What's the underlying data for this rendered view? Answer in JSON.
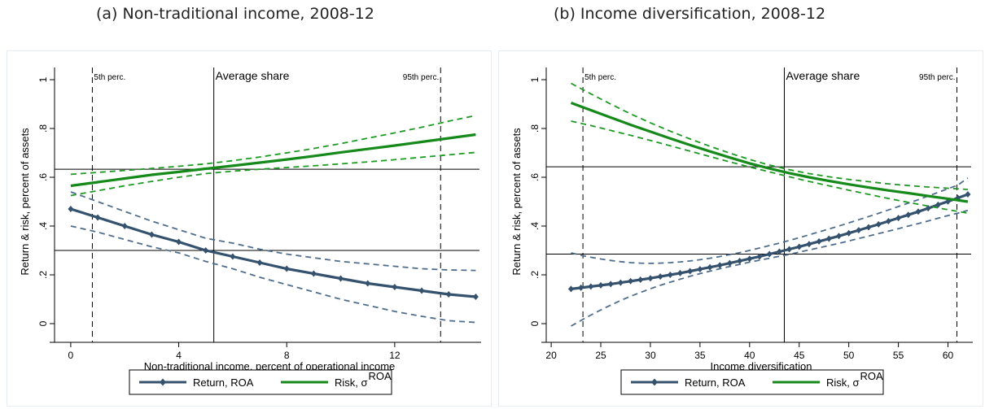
{
  "chart_data": [
    {
      "type": "line",
      "title": "(a) Non-traditional income, 2008-12",
      "xlabel": "Non-traditional income, percent of operational income",
      "ylabel": "Return & risk, percent of assets",
      "xlim": [
        -0.6,
        15.2
      ],
      "ylim": [
        -0.05,
        1.05
      ],
      "xticks": [
        0,
        4,
        8,
        12
      ],
      "yticks": [
        0,
        0.2,
        0.4,
        0.6,
        0.8,
        1
      ],
      "ytick_labels": [
        "0",
        ".2",
        ".4",
        ".6",
        ".8",
        "1"
      ],
      "grid": false,
      "legend_position": "bottom",
      "reference_lines": {
        "vertical": [
          {
            "x": 0.8,
            "style": "dashed",
            "label": "5th perc."
          },
          {
            "x": 5.3,
            "style": "solid",
            "label": "Average share"
          },
          {
            "x": 13.7,
            "style": "dashed",
            "label": "95th perc."
          }
        ],
        "horizontal": [
          {
            "y": 0.633,
            "style": "solid"
          },
          {
            "y": 0.3,
            "style": "solid"
          }
        ]
      },
      "series": [
        {
          "name": "Return, ROA",
          "color": "#34516d",
          "marker": "diamond",
          "x": [
            0,
            1,
            2,
            3,
            4,
            5,
            6,
            7,
            8,
            9,
            10,
            11,
            12,
            13,
            14,
            15
          ],
          "values": [
            0.47,
            0.435,
            0.4,
            0.365,
            0.335,
            0.3,
            0.275,
            0.25,
            0.225,
            0.205,
            0.185,
            0.165,
            0.15,
            0.135,
            0.12,
            0.11
          ],
          "ci_lower": [
            0.4,
            0.375,
            0.345,
            0.315,
            0.29,
            0.255,
            0.225,
            0.19,
            0.16,
            0.13,
            0.1,
            0.075,
            0.05,
            0.03,
            0.012,
            0.005
          ],
          "ci_upper": [
            0.54,
            0.5,
            0.46,
            0.42,
            0.385,
            0.35,
            0.33,
            0.305,
            0.285,
            0.27,
            0.255,
            0.245,
            0.235,
            0.225,
            0.22,
            0.218
          ]
        },
        {
          "name": "Risk, σROA",
          "color": "#15891a",
          "marker": "none",
          "x": [
            0,
            1,
            2,
            3,
            4,
            5,
            6,
            7,
            8,
            9,
            10,
            11,
            12,
            13,
            14,
            15
          ],
          "values": [
            0.565,
            0.58,
            0.595,
            0.61,
            0.622,
            0.635,
            0.647,
            0.66,
            0.673,
            0.687,
            0.702,
            0.716,
            0.73,
            0.745,
            0.76,
            0.775
          ],
          "ci_lower": [
            0.525,
            0.545,
            0.565,
            0.583,
            0.6,
            0.615,
            0.625,
            0.633,
            0.64,
            0.647,
            0.655,
            0.663,
            0.672,
            0.682,
            0.692,
            0.702
          ],
          "ci_upper": [
            0.612,
            0.62,
            0.628,
            0.636,
            0.645,
            0.655,
            0.668,
            0.683,
            0.7,
            0.718,
            0.738,
            0.76,
            0.782,
            0.805,
            0.83,
            0.853
          ]
        }
      ],
      "legend": [
        {
          "label": "Return, ROA",
          "series": 0
        },
        {
          "label": "Risk, σ",
          "superscript": "ROA",
          "series": 1
        }
      ]
    },
    {
      "type": "line",
      "title": "(b) Income diversification, 2008-12",
      "xlabel": "Income diversification",
      "ylabel": "Return & risk, percent of assets",
      "xlim": [
        19.5,
        62.5
      ],
      "ylim": [
        -0.05,
        1.05
      ],
      "xticks": [
        20,
        25,
        30,
        35,
        40,
        45,
        50,
        55,
        60
      ],
      "yticks": [
        0,
        0.2,
        0.4,
        0.6,
        0.8,
        1
      ],
      "ytick_labels": [
        "0",
        ".2",
        ".4",
        ".6",
        ".8",
        "1"
      ],
      "grid": false,
      "legend_position": "bottom",
      "reference_lines": {
        "vertical": [
          {
            "x": 23.2,
            "style": "dashed",
            "label": "5th perc."
          },
          {
            "x": 43.5,
            "style": "solid",
            "label": "Average share"
          },
          {
            "x": 60.9,
            "style": "dashed",
            "label": "95th perc."
          }
        ],
        "horizontal": [
          {
            "y": 0.643,
            "style": "solid"
          },
          {
            "y": 0.285,
            "style": "solid"
          }
        ]
      },
      "series": [
        {
          "name": "Return, ROA",
          "color": "#34516d",
          "marker": "diamond",
          "x": [
            22,
            23,
            24,
            25,
            26,
            27,
            28,
            29,
            30,
            31,
            32,
            33,
            34,
            35,
            36,
            37,
            38,
            39,
            40,
            41,
            42,
            43,
            44,
            45,
            46,
            47,
            48,
            49,
            50,
            51,
            52,
            53,
            54,
            55,
            56,
            57,
            58,
            59,
            60,
            61,
            62
          ],
          "values": [
            0.142,
            0.147,
            0.152,
            0.157,
            0.162,
            0.168,
            0.174,
            0.18,
            0.186,
            0.193,
            0.2,
            0.207,
            0.215,
            0.223,
            0.231,
            0.239,
            0.248,
            0.257,
            0.266,
            0.275,
            0.285,
            0.295,
            0.305,
            0.315,
            0.326,
            0.337,
            0.348,
            0.359,
            0.371,
            0.383,
            0.395,
            0.407,
            0.42,
            0.433,
            0.446,
            0.459,
            0.473,
            0.487,
            0.501,
            0.515,
            0.53
          ],
          "ci_lower": [
            -0.01,
            0.013,
            0.035,
            0.056,
            0.076,
            0.095,
            0.112,
            0.128,
            0.143,
            0.157,
            0.17,
            0.182,
            0.194,
            0.205,
            0.215,
            0.225,
            0.234,
            0.243,
            0.252,
            0.26,
            0.268,
            0.276,
            0.284,
            0.293,
            0.302,
            0.311,
            0.32,
            0.329,
            0.339,
            0.349,
            0.359,
            0.369,
            0.379,
            0.389,
            0.4,
            0.41,
            0.421,
            0.432,
            0.443,
            0.453,
            0.464
          ],
          "ci_upper": [
            0.29,
            0.28,
            0.272,
            0.265,
            0.259,
            0.254,
            0.25,
            0.248,
            0.247,
            0.248,
            0.25,
            0.253,
            0.257,
            0.262,
            0.268,
            0.275,
            0.283,
            0.291,
            0.3,
            0.31,
            0.32,
            0.33,
            0.341,
            0.352,
            0.364,
            0.376,
            0.388,
            0.4,
            0.413,
            0.426,
            0.439,
            0.452,
            0.466,
            0.48,
            0.494,
            0.508,
            0.523,
            0.538,
            0.553,
            0.568,
            0.597
          ]
        },
        {
          "name": "Risk, σROA",
          "color": "#15891a",
          "marker": "none",
          "x": [
            22,
            24,
            26,
            28,
            30,
            32,
            34,
            36,
            38,
            40,
            42,
            44,
            46,
            48,
            50,
            52,
            54,
            56,
            58,
            60,
            62
          ],
          "values": [
            0.905,
            0.875,
            0.845,
            0.815,
            0.787,
            0.759,
            0.732,
            0.706,
            0.681,
            0.657,
            0.636,
            0.617,
            0.6,
            0.585,
            0.571,
            0.558,
            0.546,
            0.535,
            0.523,
            0.512,
            0.5
          ],
          "ci_lower": [
            0.83,
            0.812,
            0.792,
            0.772,
            0.751,
            0.729,
            0.707,
            0.685,
            0.663,
            0.642,
            0.622,
            0.602,
            0.583,
            0.565,
            0.547,
            0.53,
            0.513,
            0.497,
            0.482,
            0.467,
            0.453
          ],
          "ci_upper": [
            0.985,
            0.942,
            0.9,
            0.86,
            0.823,
            0.789,
            0.757,
            0.727,
            0.699,
            0.673,
            0.65,
            0.631,
            0.615,
            0.602,
            0.591,
            0.582,
            0.573,
            0.566,
            0.56,
            0.555,
            0.55
          ]
        }
      ],
      "legend": [
        {
          "label": "Return, ROA",
          "series": 0
        },
        {
          "label": "Risk, σ",
          "superscript": "ROA",
          "series": 1
        }
      ]
    }
  ]
}
